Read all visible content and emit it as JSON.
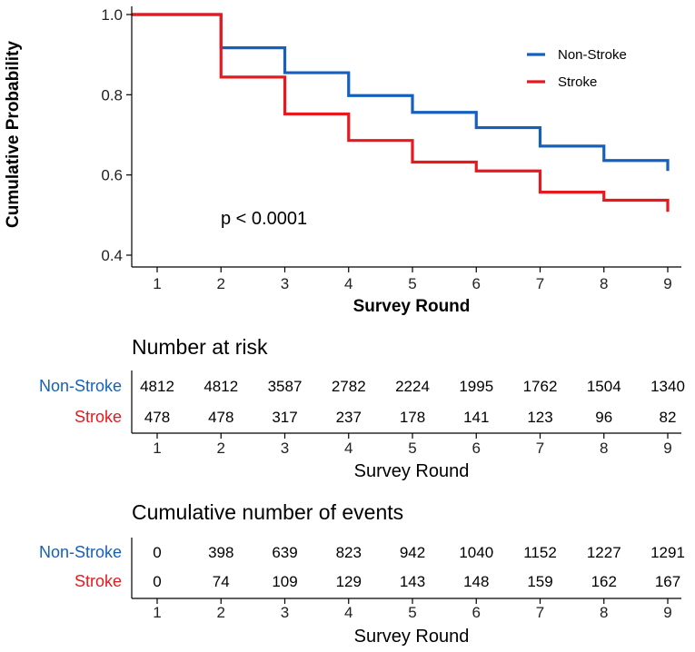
{
  "chart_data": {
    "type": "line",
    "subtype": "kaplan-meier-step",
    "xlabel": "Survey Round",
    "ylabel": "Cumulative Probability",
    "xlim": [
      1,
      9
    ],
    "ylim": [
      0.4,
      1.0
    ],
    "x_ticks": [
      1,
      2,
      3,
      4,
      5,
      6,
      7,
      8,
      9
    ],
    "y_ticks": [
      0.4,
      0.6,
      0.8,
      1.0
    ],
    "y_tick_labels": [
      "0.4",
      "0.6",
      "0.8",
      "1.0"
    ],
    "annotation": "p < 0.0001",
    "legend_position": "top-right",
    "series": [
      {
        "name": "Non-Stroke",
        "color": "#1560BD",
        "x": [
          1,
          2,
          3,
          4,
          5,
          6,
          7,
          8,
          9
        ],
        "y": [
          1.0,
          0.917,
          0.855,
          0.798,
          0.756,
          0.718,
          0.672,
          0.636,
          0.61
        ],
        "end_before_drop": 0.636
      },
      {
        "name": "Stroke",
        "color": "#E8191E",
        "x": [
          1,
          2,
          3,
          4,
          5,
          6,
          7,
          8,
          9
        ],
        "y": [
          1.0,
          0.844,
          0.752,
          0.686,
          0.632,
          0.61,
          0.557,
          0.537,
          0.508
        ],
        "end_before_drop": 0.537
      }
    ]
  },
  "risk_table": {
    "title": "Number at risk",
    "xlabel": "Survey Round",
    "x_ticks": [
      "1",
      "2",
      "3",
      "4",
      "5",
      "6",
      "7",
      "8",
      "9"
    ],
    "rows": [
      {
        "name": "Non-Stroke",
        "color": "#1560BD",
        "values": [
          "4812",
          "4812",
          "3587",
          "2782",
          "2224",
          "1995",
          "1762",
          "1504",
          "1340"
        ]
      },
      {
        "name": "Stroke",
        "color": "#E8191E",
        "values": [
          "478",
          "478",
          "317",
          "237",
          "178",
          "141",
          "123",
          "96",
          "82"
        ]
      }
    ]
  },
  "events_table": {
    "title": "Cumulative number of events",
    "xlabel": "Survey Round",
    "x_ticks": [
      "1",
      "2",
      "3",
      "4",
      "5",
      "6",
      "7",
      "8",
      "9"
    ],
    "rows": [
      {
        "name": "Non-Stroke",
        "color": "#1560BD",
        "values": [
          "0",
          "398",
          "639",
          "823",
          "942",
          "1040",
          "1152",
          "1227",
          "1291"
        ]
      },
      {
        "name": "Stroke",
        "color": "#E8191E",
        "values": [
          "0",
          "74",
          "109",
          "129",
          "143",
          "148",
          "159",
          "162",
          "167"
        ]
      }
    ]
  }
}
